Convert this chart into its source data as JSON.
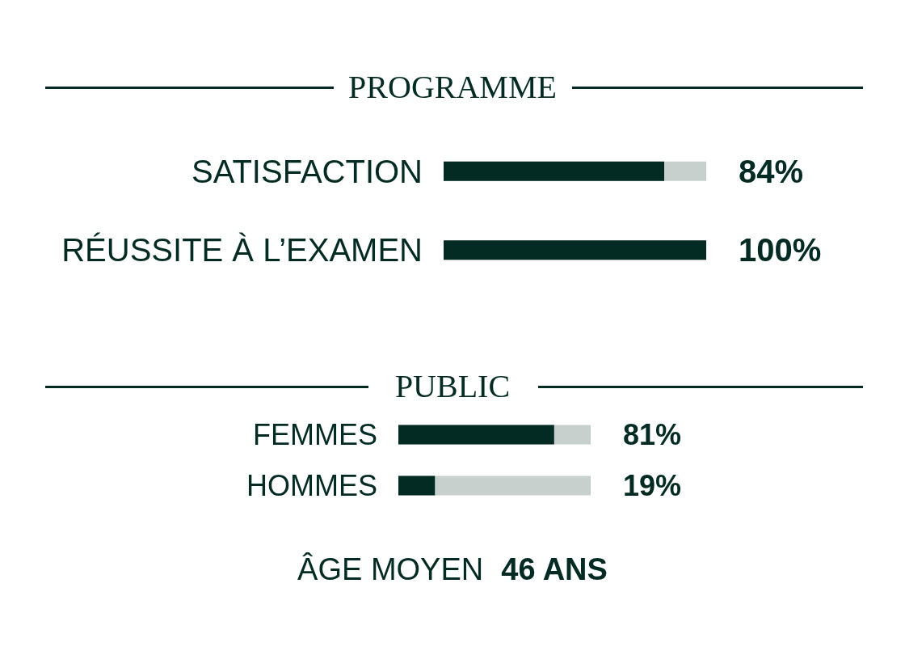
{
  "chart_data": [
    {
      "type": "bar",
      "orientation": "horizontal",
      "title": "PROGRAMME",
      "categories": [
        "SATISFACTION",
        "RÉUSSITE À L’EXAMEN"
      ],
      "values": [
        84,
        100
      ],
      "value_labels": [
        "84%",
        "100%"
      ],
      "color": "#032b24",
      "xlim": [
        0,
        100
      ],
      "tick_labels": "y"
    },
    {
      "type": "bar",
      "orientation": "horizontal",
      "title": "PUBLIC",
      "categories": [
        "FEMMES",
        "HOMMES"
      ],
      "values": [
        81,
        19
      ],
      "value_labels": [
        "81%",
        "19%"
      ],
      "color": "#032b24",
      "xlim": [
        0,
        100
      ],
      "tick_labels": "y",
      "annotations": [
        "ÂGE MOYEN",
        "46 ANS"
      ]
    }
  ]
}
